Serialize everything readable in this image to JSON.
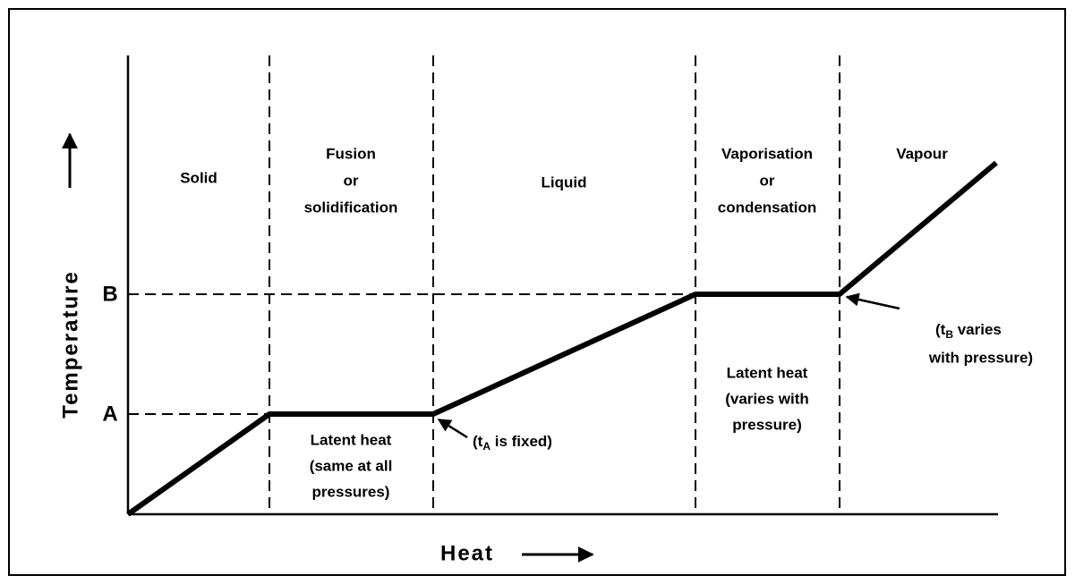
{
  "diagram": {
    "y_axis_label": "Temperature",
    "x_axis_label": "Heat",
    "levels": [
      "A",
      "B"
    ],
    "regions": [
      {
        "lines": [
          "Solid"
        ]
      },
      {
        "lines": [
          "Fusion",
          "or",
          "solidification"
        ]
      },
      {
        "lines": [
          "Liquid"
        ]
      },
      {
        "lines": [
          "Vaporisation",
          "or",
          "condensation"
        ]
      },
      {
        "lines": [
          "Vapour"
        ]
      }
    ],
    "latent_heat_notes": [
      {
        "lines": [
          "Latent heat",
          "(same at all",
          "pressures)"
        ]
      },
      {
        "lines": [
          "Latent heat",
          "(varies with",
          "pressure)"
        ]
      }
    ],
    "annotations": [
      {
        "prefix": "(t",
        "sub": "A",
        "suffix": " is fixed)"
      },
      {
        "prefix": "(t",
        "sub": "B",
        "suffix": " varies",
        "line2": "with pressure)"
      }
    ]
  }
}
